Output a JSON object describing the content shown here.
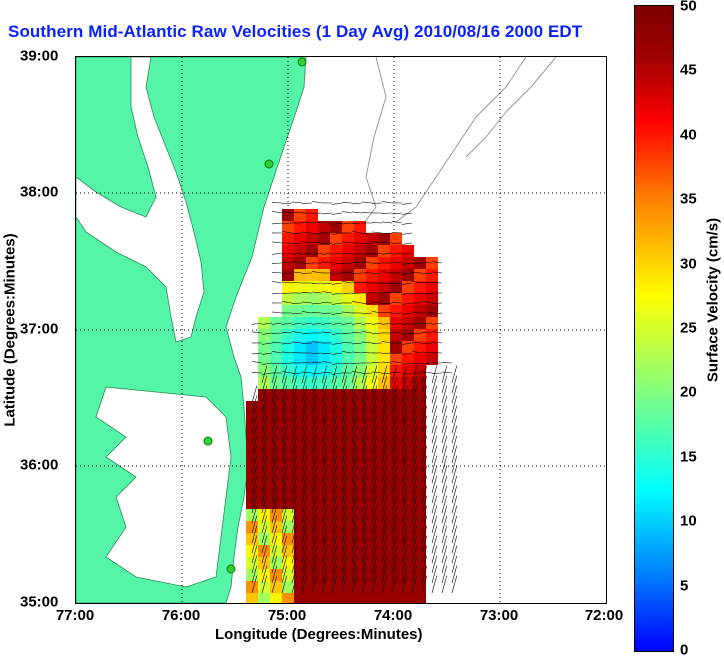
{
  "title": "Southern Mid-Atlantic Raw Velocities (1 Day Avg) 2010/08/16 2000 EDT",
  "x_axis": {
    "label": "Longitude (Degrees:Minutes)",
    "ticks": [
      "77:00",
      "76:00",
      "75:00",
      "74:00",
      "73:00",
      "72:00"
    ]
  },
  "y_axis": {
    "label": "Latitude (Degrees:Minutes)",
    "ticks": [
      "39:00",
      "38:00",
      "37:00",
      "36:00",
      "35:00"
    ]
  },
  "colorbar": {
    "label": "Surface Velocity (cm/s)",
    "ticks": [
      "50",
      "45",
      "40",
      "35",
      "30",
      "25",
      "20",
      "15",
      "10",
      "5",
      "0"
    ],
    "range": [
      0,
      50
    ]
  },
  "map": {
    "lon_range": [
      -77,
      -72
    ],
    "lat_range": [
      35,
      39
    ],
    "grid": true,
    "land_color": "#55f5a8",
    "water_color": "#ffffff",
    "isobath_color": "#999999",
    "station_color": "#2fd12f"
  }
}
